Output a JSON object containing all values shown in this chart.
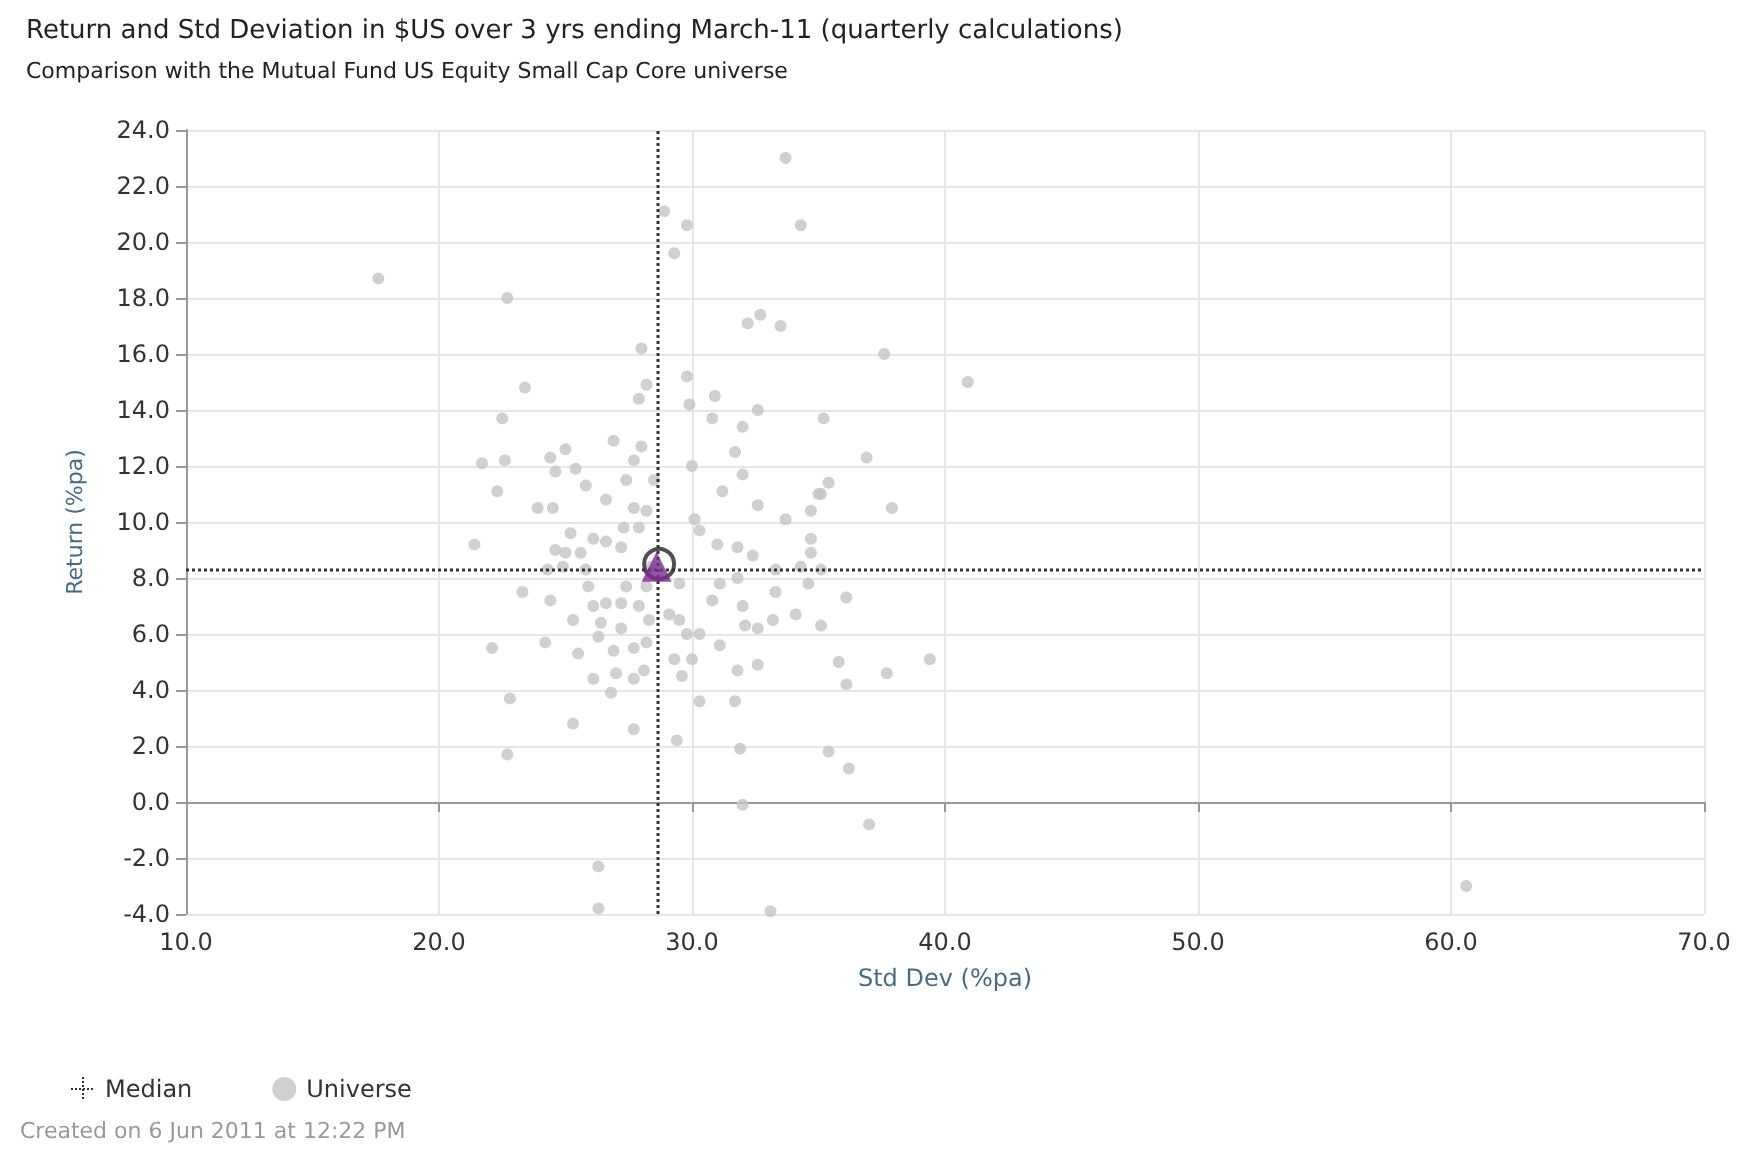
{
  "chart_data": {
    "type": "scatter",
    "title": "Return and Std Deviation in $US over 3 yrs ending March-11 (quarterly calculations)",
    "subtitle": "Comparison with the Mutual Fund US Equity Small Cap Core universe",
    "xlabel": "Std Dev (%pa)",
    "ylabel": "Return (%pa)",
    "xlim": [
      10,
      70
    ],
    "ylim": [
      -4,
      24
    ],
    "xticks": [
      {
        "value": 10,
        "label": "10.0"
      },
      {
        "value": 20,
        "label": "20.0"
      },
      {
        "value": 30,
        "label": "30.0"
      },
      {
        "value": 40,
        "label": "40.0"
      },
      {
        "value": 50,
        "label": "50.0"
      },
      {
        "value": 60,
        "label": "60.0"
      },
      {
        "value": 70,
        "label": "70.0"
      }
    ],
    "yticks": [
      {
        "value": -4,
        "label": "-4.0"
      },
      {
        "value": -2,
        "label": "-2.0"
      },
      {
        "value": 0,
        "label": "0.0"
      },
      {
        "value": 2,
        "label": "2.0"
      },
      {
        "value": 4,
        "label": "4.0"
      },
      {
        "value": 6,
        "label": "6.0"
      },
      {
        "value": 8,
        "label": "8.0"
      },
      {
        "value": 10,
        "label": "10.0"
      },
      {
        "value": 12,
        "label": "12.0"
      },
      {
        "value": 14,
        "label": "14.0"
      },
      {
        "value": 16,
        "label": "16.0"
      },
      {
        "value": 18,
        "label": "18.0"
      },
      {
        "value": 20,
        "label": "20.0"
      },
      {
        "value": 22,
        "label": "22.0"
      },
      {
        "value": 24,
        "label": "24.0"
      }
    ],
    "grid": true,
    "legend": "bottom left",
    "marker": "circle",
    "ref_lines": [
      {
        "axis": "x",
        "value": 28.6,
        "label": "Median",
        "color": "#333333",
        "line_style": "dotted"
      },
      {
        "axis": "y",
        "value": 8.3,
        "color": "#333333",
        "line_style": "dotted"
      }
    ],
    "series": [
      {
        "name": "Universe",
        "color": "#c4c4c4",
        "x": [
          17.6,
          22.7,
          28.0,
          28.2,
          27.9,
          23.4,
          22.5,
          26.9,
          28.0,
          21.7,
          22.6,
          24.4,
          25.0,
          24.6,
          25.4,
          27.7,
          25.8,
          22.3,
          27.4,
          28.5,
          28.9,
          29.3,
          33.7,
          29.8,
          34.3,
          32.2,
          32.7,
          33.5,
          37.6,
          40.9,
          29.8,
          30.9,
          29.9,
          32.6,
          30.8,
          35.2,
          32.0,
          31.7,
          30.0,
          36.9,
          32.0,
          35.4,
          35.0,
          31.2,
          35.1,
          37.9,
          32.6,
          33.7,
          34.7,
          34.7,
          34.7,
          31.0,
          31.8,
          32.4,
          30.1,
          30.3,
          33.3,
          34.3,
          35.1,
          31.1,
          31.8,
          34.6,
          30.8,
          32.0,
          33.3,
          36.1,
          32.1,
          32.6,
          33.2,
          34.1,
          35.1,
          31.1,
          30.3,
          35.8,
          39.4,
          36.1,
          37.7,
          32.6,
          31.8,
          30.3,
          31.7,
          29.6,
          30.0,
          31.9,
          29.4,
          27.7,
          35.4,
          36.2,
          32.0,
          37.0,
          33.1,
          60.6,
          21.4,
          22.1,
          22.8,
          22.7,
          24.2,
          23.3,
          24.4,
          25.3,
          26.3,
          26.3,
          25.3,
          25.5,
          26.1,
          26.8,
          27.0,
          27.7,
          28.1,
          27.7,
          26.9,
          26.3,
          26.4,
          27.2,
          28.3,
          28.2,
          26.1,
          26.6,
          27.2,
          27.9,
          25.9,
          27.4,
          28.2,
          24.3,
          24.9,
          25.8,
          24.6,
          25.0,
          25.6,
          25.2,
          26.1,
          26.6,
          27.2,
          27.9,
          27.3,
          27.7,
          26.6,
          23.9,
          24.5,
          28.2,
          28.4,
          29.8,
          29.3,
          29.1,
          29.5,
          29.5
        ],
        "values": [
          18.7,
          18.0,
          16.2,
          14.9,
          14.4,
          14.8,
          13.7,
          12.9,
          12.7,
          12.1,
          12.2,
          12.3,
          12.6,
          11.8,
          11.9,
          12.2,
          11.3,
          11.1,
          11.5,
          11.5,
          21.1,
          19.6,
          23.0,
          20.6,
          20.6,
          17.1,
          17.4,
          17.0,
          16.0,
          15.0,
          15.2,
          14.5,
          14.2,
          14.0,
          13.7,
          13.7,
          13.4,
          12.5,
          12.0,
          12.3,
          11.7,
          11.4,
          11.0,
          11.1,
          11.0,
          10.5,
          10.6,
          10.1,
          10.4,
          9.4,
          8.9,
          9.2,
          9.1,
          8.8,
          10.1,
          9.7,
          8.3,
          8.4,
          8.3,
          7.8,
          8.0,
          7.8,
          7.2,
          7.0,
          7.5,
          7.3,
          6.3,
          6.2,
          6.5,
          6.7,
          6.3,
          5.6,
          6.0,
          5.0,
          5.1,
          4.2,
          4.6,
          4.9,
          4.7,
          3.6,
          3.6,
          4.5,
          5.1,
          1.9,
          2.2,
          2.6,
          1.8,
          1.2,
          -0.1,
          -0.8,
          -3.9,
          -3.0,
          9.2,
          5.5,
          3.7,
          1.7,
          5.7,
          7.5,
          7.2,
          2.8,
          -2.3,
          -3.8,
          6.5,
          5.3,
          4.4,
          3.9,
          4.6,
          4.4,
          4.7,
          5.5,
          5.4,
          5.9,
          6.4,
          6.2,
          6.5,
          5.7,
          7.0,
          7.1,
          7.1,
          7.0,
          7.7,
          7.7,
          7.7,
          8.3,
          8.4,
          8.3,
          9.0,
          8.9,
          8.9,
          9.6,
          9.4,
          9.3,
          9.1,
          9.8,
          9.8,
          10.5,
          10.8,
          10.5,
          10.5,
          10.4,
          8.4,
          6.0,
          5.1,
          6.7,
          6.5,
          7.8
        ]
      },
      {
        "color": "#222222",
        "marker": "circle",
        "x": [
          28.7
        ],
        "values": [
          8.5
        ]
      },
      {
        "color": "#7b2d8e",
        "marker": "triangle",
        "x": [
          28.6
        ],
        "values": [
          8.4
        ]
      }
    ],
    "annotations": [
      "Created on 6 Jun 2011 at 12:22 PM"
    ]
  }
}
